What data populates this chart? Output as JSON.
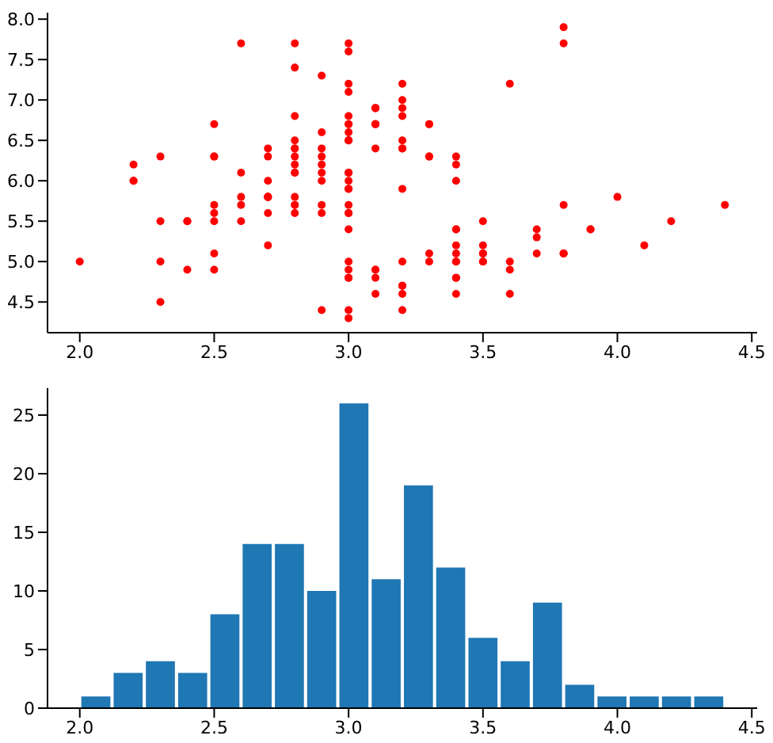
{
  "chart_data": [
    {
      "type": "scatter",
      "marker": "circle",
      "grid": false,
      "legend": false,
      "xlim": [
        1.88,
        4.52
      ],
      "ylim": [
        4.12,
        8.08
      ],
      "xticks": [
        {
          "value": 2.0,
          "label": "2.0"
        },
        {
          "value": 2.5,
          "label": "2.5"
        },
        {
          "value": 3.0,
          "label": "3.0"
        },
        {
          "value": 3.5,
          "label": "3.5"
        },
        {
          "value": 4.0,
          "label": "4.0"
        },
        {
          "value": 4.5,
          "label": "4.5"
        }
      ],
      "yticks": [
        {
          "value": 4.5,
          "label": "4.5"
        },
        {
          "value": 5.0,
          "label": "5.0"
        },
        {
          "value": 5.5,
          "label": "5.5"
        },
        {
          "value": 6.0,
          "label": "6.0"
        },
        {
          "value": 6.5,
          "label": "6.5"
        },
        {
          "value": 7.0,
          "label": "7.0"
        },
        {
          "value": 7.5,
          "label": "7.5"
        },
        {
          "value": 8.0,
          "label": "8.0"
        }
      ],
      "series": [
        {
          "color": "#ff0000",
          "x": [
            3.5,
            3.0,
            3.2,
            3.1,
            3.6,
            3.9,
            3.4,
            3.4,
            2.9,
            3.1,
            3.7,
            3.4,
            3.0,
            3.0,
            4.0,
            4.4,
            3.9,
            3.5,
            3.8,
            3.8,
            3.4,
            3.7,
            3.6,
            3.3,
            3.4,
            3.0,
            3.4,
            3.5,
            3.4,
            3.2,
            3.1,
            3.4,
            4.1,
            4.2,
            3.1,
            3.2,
            3.5,
            3.6,
            3.0,
            3.4,
            3.5,
            2.3,
            3.2,
            3.5,
            3.8,
            3.0,
            3.8,
            3.2,
            3.7,
            3.3,
            3.2,
            3.2,
            3.1,
            2.3,
            2.8,
            2.8,
            3.3,
            2.4,
            2.9,
            2.7,
            2.0,
            3.0,
            2.2,
            2.9,
            2.9,
            3.1,
            3.0,
            2.7,
            2.2,
            2.5,
            3.2,
            2.8,
            2.5,
            2.8,
            2.9,
            3.0,
            2.8,
            3.0,
            2.9,
            2.6,
            2.4,
            2.4,
            2.7,
            2.7,
            3.0,
            3.4,
            3.1,
            2.3,
            3.0,
            2.5,
            2.6,
            3.0,
            2.6,
            2.3,
            2.7,
            3.0,
            2.9,
            2.9,
            2.5,
            2.8,
            3.3,
            2.7,
            3.0,
            2.9,
            3.0,
            3.0,
            2.5,
            2.9,
            2.5,
            3.6,
            3.2,
            2.7,
            3.0,
            2.5,
            2.8,
            3.2,
            3.0,
            3.8,
            2.6,
            2.2,
            3.2,
            2.8,
            2.8,
            2.7,
            3.3,
            3.2,
            2.8,
            3.0,
            2.8,
            3.0,
            2.8,
            3.8,
            2.8,
            2.8,
            2.6,
            3.0,
            3.4,
            3.1,
            3.0,
            3.1,
            3.1,
            3.1,
            2.7,
            3.2,
            3.3,
            3.0,
            2.5,
            3.0,
            3.4,
            3.0
          ],
          "values": [
            5.1,
            4.9,
            4.7,
            4.6,
            5.0,
            5.4,
            4.6,
            5.0,
            4.4,
            4.9,
            5.4,
            4.8,
            4.8,
            4.3,
            5.8,
            5.7,
            5.4,
            5.1,
            5.7,
            5.1,
            5.4,
            5.1,
            4.6,
            5.1,
            4.8,
            5.0,
            5.0,
            5.2,
            5.2,
            4.7,
            4.8,
            5.4,
            5.2,
            5.5,
            4.9,
            5.0,
            5.5,
            4.9,
            4.4,
            5.1,
            5.0,
            4.5,
            4.4,
            5.0,
            5.1,
            4.8,
            5.1,
            4.6,
            5.3,
            5.0,
            7.0,
            6.4,
            6.9,
            5.5,
            6.5,
            5.7,
            6.3,
            4.9,
            6.6,
            5.2,
            5.0,
            5.9,
            6.0,
            6.1,
            5.6,
            6.7,
            5.6,
            5.8,
            6.2,
            5.6,
            5.9,
            6.1,
            6.3,
            6.1,
            6.4,
            6.6,
            6.8,
            6.7,
            6.0,
            5.7,
            5.5,
            5.5,
            5.8,
            6.0,
            5.4,
            6.0,
            6.7,
            6.3,
            5.6,
            5.5,
            5.5,
            6.1,
            5.8,
            5.0,
            5.6,
            5.7,
            5.7,
            6.2,
            5.1,
            5.7,
            6.3,
            5.8,
            7.1,
            6.3,
            6.5,
            7.6,
            4.9,
            7.3,
            6.7,
            7.2,
            6.5,
            6.4,
            6.8,
            5.7,
            5.8,
            6.4,
            6.5,
            7.7,
            7.7,
            6.0,
            6.9,
            5.6,
            7.7,
            6.3,
            6.7,
            7.2,
            6.2,
            6.1,
            6.4,
            7.2,
            7.4,
            7.9,
            6.4,
            6.3,
            6.1,
            7.7,
            6.3,
            6.4,
            6.0,
            6.9,
            6.7,
            6.9,
            5.8,
            6.8,
            6.7,
            6.7,
            6.3,
            6.5,
            6.2,
            5.9
          ]
        }
      ]
    },
    {
      "type": "histogram",
      "grid": false,
      "legend": false,
      "xlim": [
        1.88,
        4.52
      ],
      "ylim": [
        0,
        27.3
      ],
      "xticks": [
        {
          "value": 2.0,
          "label": "2.0"
        },
        {
          "value": 2.5,
          "label": "2.5"
        },
        {
          "value": 3.0,
          "label": "3.0"
        },
        {
          "value": 3.5,
          "label": "3.5"
        },
        {
          "value": 4.0,
          "label": "4.0"
        },
        {
          "value": 4.5,
          "label": "4.5"
        }
      ],
      "yticks": [
        0,
        5,
        10,
        15,
        20,
        25
      ],
      "color": "#1f77b4",
      "bins": [
        2.0,
        2.12,
        2.24,
        2.36,
        2.48,
        2.6,
        2.72,
        2.84,
        2.96,
        3.08,
        3.2,
        3.32,
        3.44,
        3.56,
        3.68,
        3.8,
        3.92,
        4.04,
        4.16,
        4.28,
        4.4
      ],
      "values": [
        1,
        3,
        4,
        3,
        8,
        14,
        14,
        10,
        26,
        11,
        19,
        12,
        6,
        4,
        9,
        2,
        1,
        1,
        1,
        1
      ]
    }
  ]
}
